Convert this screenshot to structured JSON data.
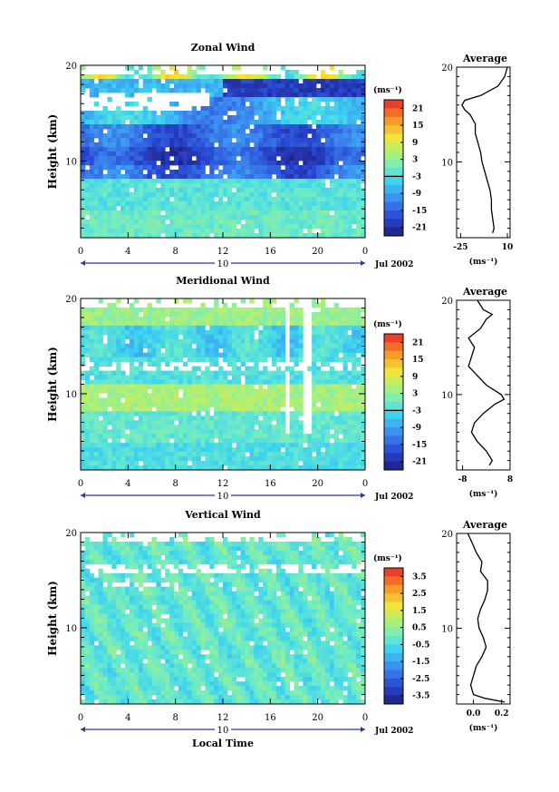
{
  "chart_data": [
    {
      "type": "heatmap",
      "title": "Zonal Wind",
      "ylabel": "Height (km)",
      "y_ticks": [
        "20",
        "10"
      ],
      "x_ticks": [
        "0",
        "4",
        "8",
        "12",
        "16",
        "20",
        "0"
      ],
      "xlim": [
        0,
        24
      ],
      "ylim": [
        2,
        20
      ],
      "date_label": "Jul 2002",
      "day_label": "10",
      "colorbar": {
        "unit": "(ms⁻¹)",
        "ticks": [
          "21",
          "15",
          "9",
          "3",
          "-3",
          "-9",
          "-15",
          "-21"
        ],
        "range": [
          -24,
          24
        ]
      },
      "average": {
        "title": "Average",
        "xlabel": "(ms⁻¹)",
        "x_ticks": [
          "-25",
          "10"
        ],
        "y_ticks": [
          "20",
          "10"
        ],
        "xlim": [
          -28,
          12
        ],
        "profile_height_km": [
          2.5,
          3,
          4,
          5,
          6,
          7,
          8,
          9,
          10,
          11,
          12,
          13,
          14,
          15,
          15.5,
          16,
          16.5,
          17,
          18,
          19,
          20
        ],
        "profile_value": [
          -1,
          0,
          -1,
          -2,
          -2,
          -3,
          -5,
          -7,
          -9,
          -10,
          -12,
          -14,
          -14,
          -18,
          -22,
          -24,
          -22,
          -10,
          3,
          8,
          10
        ]
      }
    },
    {
      "type": "heatmap",
      "title": "Meridional Wind",
      "ylabel": "Height (km)",
      "y_ticks": [
        "20",
        "10"
      ],
      "x_ticks": [
        "0",
        "4",
        "8",
        "12",
        "16",
        "20",
        "0"
      ],
      "xlim": [
        0,
        24
      ],
      "ylim": [
        2,
        20
      ],
      "date_label": "Jul 2002",
      "day_label": "10",
      "colorbar": {
        "unit": "(ms⁻¹)",
        "ticks": [
          "21",
          "15",
          "9",
          "3",
          "-3",
          "-9",
          "-15",
          "-21"
        ],
        "range": [
          -24,
          24
        ]
      },
      "average": {
        "title": "Average",
        "xlabel": "(ms⁻¹)",
        "x_ticks": [
          "-8",
          "8"
        ],
        "y_ticks": [
          "20",
          "10"
        ],
        "xlim": [
          -10,
          8
        ],
        "profile_height_km": [
          2.5,
          3,
          4,
          5,
          6,
          7,
          8,
          9,
          9.5,
          10,
          11,
          12,
          13,
          14,
          15,
          16,
          17,
          18,
          18.5,
          19,
          20
        ],
        "profile_value": [
          1,
          2,
          0,
          -3,
          -5,
          -4,
          -1,
          3,
          6,
          5,
          0,
          -3,
          -6,
          -5,
          -4,
          -6,
          -2,
          0,
          2,
          -1,
          -3
        ]
      }
    },
    {
      "type": "heatmap",
      "title": "Vertical Wind",
      "ylabel": "Height (km)",
      "xlabel": "Local Time",
      "y_ticks": [
        "20",
        "10"
      ],
      "x_ticks": [
        "0",
        "4",
        "8",
        "12",
        "16",
        "20",
        "0"
      ],
      "xlim": [
        0,
        24
      ],
      "ylim": [
        2,
        20
      ],
      "date_label": "Jul 2002",
      "day_label": "10",
      "colorbar": {
        "unit": "(ms⁻¹)",
        "ticks": [
          "3.5",
          "2.5",
          "1.5",
          "0.5",
          "-0.5",
          "-1.5",
          "-2.5",
          "-3.5"
        ],
        "range": [
          -4,
          4
        ]
      },
      "average": {
        "title": "Average",
        "xlabel": "(ms⁻¹)",
        "x_ticks": [
          "0.0",
          "0.2"
        ],
        "y_ticks": [
          "20",
          "10"
        ],
        "xlim": [
          -0.12,
          0.26
        ],
        "profile_height_km": [
          2.2,
          2.6,
          3,
          4,
          5,
          6,
          7,
          8,
          9,
          10,
          11,
          12,
          13,
          14,
          15,
          16,
          17,
          18,
          19,
          20
        ],
        "profile_value": [
          0.22,
          0.08,
          0.0,
          -0.02,
          0.0,
          0.02,
          0.06,
          0.09,
          0.07,
          0.04,
          0.03,
          0.05,
          0.08,
          0.1,
          0.1,
          0.05,
          0.06,
          0.02,
          -0.01,
          -0.04
        ]
      }
    }
  ]
}
